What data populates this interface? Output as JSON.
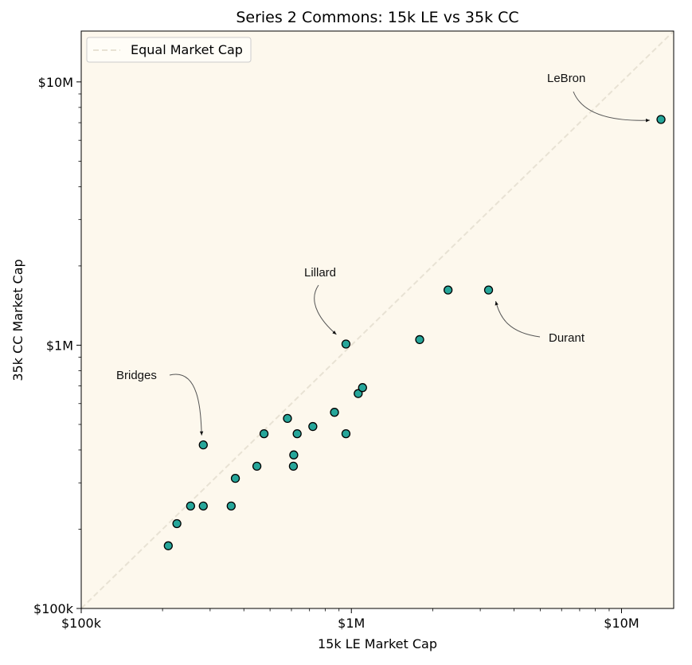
{
  "chart_data": {
    "type": "scatter",
    "title": "Series 2 Commons: 15k LE vs 35k CC",
    "xlabel": "15k LE Market Cap",
    "ylabel": "35k CC Market Cap",
    "x_scale": "log",
    "y_scale": "log",
    "xlim": [
      100000,
      15600000
    ],
    "ylim": [
      100000,
      15600000
    ],
    "x_ticks": [
      {
        "value": 100000,
        "label": "$100k"
      },
      {
        "value": 1000000,
        "label": "$1M"
      },
      {
        "value": 10000000,
        "label": "$10M"
      }
    ],
    "y_ticks": [
      {
        "value": 100000,
        "label": "$100k"
      },
      {
        "value": 1000000,
        "label": "$1M"
      },
      {
        "value": 10000000,
        "label": "$10M"
      }
    ],
    "grid": false,
    "legend": {
      "position": "top-left",
      "entries": [
        {
          "label": "Equal Market Cap",
          "style": "dashed"
        }
      ]
    },
    "reference_line": {
      "name": "Equal Market Cap",
      "y_equals_x": true,
      "color": "#e8e2d4"
    },
    "colors": {
      "background": "#fdf8ed",
      "point_fill": "#26a69a",
      "point_edge": "#000000"
    },
    "points": [
      {
        "x": 210000,
        "y": 173000
      },
      {
        "x": 226000,
        "y": 210000
      },
      {
        "x": 254000,
        "y": 245000
      },
      {
        "x": 283000,
        "y": 245000
      },
      {
        "x": 283000,
        "y": 418000
      },
      {
        "x": 359000,
        "y": 245000
      },
      {
        "x": 372000,
        "y": 312000
      },
      {
        "x": 447000,
        "y": 347000
      },
      {
        "x": 475000,
        "y": 461000
      },
      {
        "x": 580000,
        "y": 527000
      },
      {
        "x": 610000,
        "y": 347000
      },
      {
        "x": 612000,
        "y": 383000
      },
      {
        "x": 630000,
        "y": 461000
      },
      {
        "x": 720000,
        "y": 491000
      },
      {
        "x": 866000,
        "y": 556000
      },
      {
        "x": 955000,
        "y": 461000
      },
      {
        "x": 955000,
        "y": 1010000
      },
      {
        "x": 1060000,
        "y": 655000
      },
      {
        "x": 1100000,
        "y": 690000
      },
      {
        "x": 1790000,
        "y": 1050000
      },
      {
        "x": 2280000,
        "y": 1620000
      },
      {
        "x": 3220000,
        "y": 1620000
      },
      {
        "x": 14000000,
        "y": 7200000
      }
    ],
    "annotations": [
      {
        "text": "LeBron",
        "point": [
          14000000,
          7200000
        ]
      },
      {
        "text": "Lillard",
        "point": [
          955000,
          1010000
        ]
      },
      {
        "text": "Durant",
        "point": [
          3220000,
          1620000
        ]
      },
      {
        "text": "Bridges",
        "point": [
          283000,
          418000
        ]
      }
    ]
  }
}
